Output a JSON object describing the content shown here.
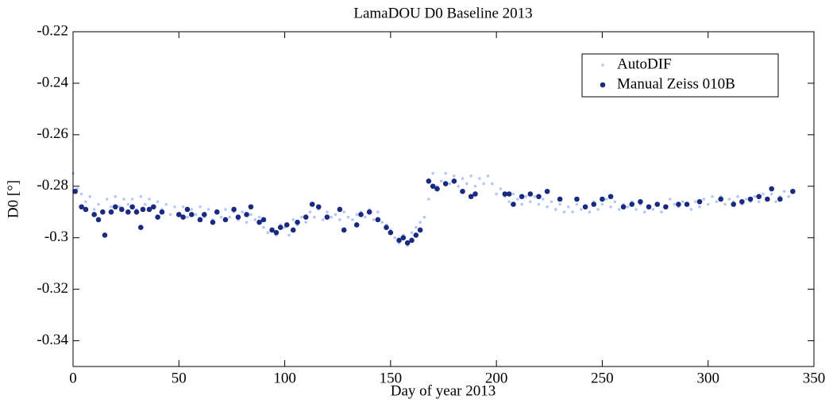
{
  "chart_data": {
    "type": "scatter",
    "title": "LamaDOU D0 Baseline 2013",
    "x_label": "Day of year 2013",
    "y_label": "D0 [°]",
    "xlim": [
      0,
      350
    ],
    "xticks": [
      0,
      50,
      100,
      150,
      200,
      250,
      300,
      350
    ],
    "ylim": [
      -0.35,
      -0.22
    ],
    "yticks": [
      -0.34,
      -0.32,
      -0.3,
      -0.28,
      -0.26,
      -0.24,
      -0.22
    ],
    "grid": false,
    "legend": "upper right",
    "series": [
      {
        "name": "AutoDIF",
        "color": "#b3c6f5",
        "marker": "dot",
        "x": [
          0,
          2,
          4,
          6,
          8,
          10,
          12,
          14,
          16,
          18,
          20,
          22,
          24,
          26,
          28,
          30,
          32,
          34,
          36,
          38,
          40,
          42,
          44,
          46,
          48,
          50,
          52,
          54,
          56,
          58,
          60,
          62,
          64,
          66,
          68,
          70,
          72,
          74,
          76,
          78,
          80,
          82,
          84,
          86,
          88,
          90,
          92,
          94,
          96,
          98,
          100,
          102,
          104,
          106,
          108,
          110,
          112,
          114,
          116,
          118,
          120,
          122,
          124,
          126,
          128,
          130,
          132,
          134,
          136,
          138,
          140,
          142,
          144,
          146,
          148,
          150,
          152,
          154,
          156,
          158,
          160,
          162,
          164,
          166,
          168,
          170,
          172,
          174,
          176,
          178,
          180,
          182,
          184,
          186,
          188,
          190,
          192,
          194,
          196,
          198,
          200,
          202,
          204,
          206,
          208,
          210,
          212,
          214,
          216,
          218,
          220,
          222,
          224,
          226,
          228,
          230,
          232,
          234,
          236,
          238,
          240,
          242,
          244,
          246,
          248,
          250,
          252,
          254,
          256,
          258,
          260,
          262,
          264,
          266,
          268,
          270,
          272,
          274,
          276,
          278,
          280,
          282,
          284,
          286,
          288,
          290,
          292,
          294,
          296,
          298,
          300,
          302,
          304,
          306,
          308,
          310,
          312,
          314,
          316,
          318,
          320,
          322,
          324,
          326,
          328,
          330,
          332,
          334,
          336,
          338
        ],
        "values": [
          -0.275,
          -0.281,
          -0.283,
          -0.286,
          -0.284,
          -0.289,
          -0.287,
          -0.29,
          -0.285,
          -0.288,
          -0.284,
          -0.288,
          -0.285,
          -0.287,
          -0.285,
          -0.289,
          -0.284,
          -0.287,
          -0.285,
          -0.288,
          -0.286,
          -0.289,
          -0.287,
          -0.291,
          -0.288,
          -0.291,
          -0.288,
          -0.292,
          -0.289,
          -0.291,
          -0.288,
          -0.292,
          -0.289,
          -0.293,
          -0.29,
          -0.292,
          -0.289,
          -0.292,
          -0.29,
          -0.293,
          -0.29,
          -0.294,
          -0.291,
          -0.293,
          -0.292,
          -0.296,
          -0.298,
          -0.297,
          -0.299,
          -0.295,
          -0.296,
          -0.299,
          -0.293,
          -0.295,
          -0.292,
          -0.294,
          -0.29,
          -0.292,
          -0.289,
          -0.293,
          -0.29,
          -0.292,
          -0.291,
          -0.293,
          -0.29,
          -0.292,
          -0.293,
          -0.291,
          -0.29,
          -0.292,
          -0.289,
          -0.293,
          -0.29,
          -0.294,
          -0.295,
          -0.297,
          -0.3,
          -0.302,
          -0.299,
          -0.303,
          -0.298,
          -0.296,
          -0.294,
          -0.292,
          -0.285,
          -0.275,
          -0.28,
          -0.278,
          -0.275,
          -0.279,
          -0.276,
          -0.28,
          -0.277,
          -0.279,
          -0.276,
          -0.28,
          -0.277,
          -0.279,
          -0.276,
          -0.279,
          -0.283,
          -0.281,
          -0.284,
          -0.286,
          -0.283,
          -0.285,
          -0.287,
          -0.284,
          -0.286,
          -0.284,
          -0.287,
          -0.285,
          -0.288,
          -0.286,
          -0.289,
          -0.287,
          -0.29,
          -0.288,
          -0.29,
          -0.287,
          -0.289,
          -0.288,
          -0.29,
          -0.286,
          -0.289,
          -0.287,
          -0.285,
          -0.288,
          -0.286,
          -0.289,
          -0.287,
          -0.288,
          -0.286,
          -0.289,
          -0.287,
          -0.29,
          -0.288,
          -0.289,
          -0.287,
          -0.29,
          -0.288,
          -0.285,
          -0.287,
          -0.288,
          -0.286,
          -0.287,
          -0.289,
          -0.286,
          -0.288,
          -0.285,
          -0.287,
          -0.284,
          -0.286,
          -0.284,
          -0.287,
          -0.285,
          -0.286,
          -0.284,
          -0.287,
          -0.285,
          -0.286,
          -0.284,
          -0.286,
          -0.283,
          -0.285,
          -0.283,
          -0.286,
          -0.284,
          -0.282,
          -0.284
        ]
      },
      {
        "name": "Manual Zeiss 010B",
        "color": "#1a2a80",
        "marker": "circle",
        "x": [
          1,
          4,
          6,
          10,
          12,
          14,
          15,
          18,
          20,
          23,
          26,
          28,
          30,
          32,
          33,
          36,
          38,
          40,
          42,
          50,
          52,
          54,
          56,
          60,
          62,
          66,
          68,
          72,
          76,
          78,
          82,
          84,
          88,
          90,
          94,
          96,
          98,
          101,
          104,
          106,
          110,
          113,
          116,
          120,
          126,
          128,
          134,
          136,
          140,
          144,
          148,
          150,
          154,
          156,
          158,
          160,
          162,
          164,
          168,
          170,
          172,
          176,
          180,
          184,
          188,
          190,
          204,
          206,
          208,
          212,
          216,
          220,
          224,
          230,
          238,
          242,
          246,
          250,
          254,
          260,
          264,
          268,
          272,
          276,
          280,
          286,
          290,
          296,
          306,
          312,
          316,
          320,
          324,
          328,
          330,
          334,
          340
        ],
        "values": [
          -0.282,
          -0.288,
          -0.289,
          -0.291,
          -0.293,
          -0.29,
          -0.299,
          -0.29,
          -0.288,
          -0.289,
          -0.29,
          -0.288,
          -0.29,
          -0.296,
          -0.289,
          -0.289,
          -0.288,
          -0.292,
          -0.29,
          -0.291,
          -0.292,
          -0.289,
          -0.291,
          -0.293,
          -0.291,
          -0.294,
          -0.29,
          -0.293,
          -0.289,
          -0.292,
          -0.291,
          -0.288,
          -0.294,
          -0.293,
          -0.297,
          -0.298,
          -0.296,
          -0.295,
          -0.297,
          -0.294,
          -0.292,
          -0.287,
          -0.288,
          -0.292,
          -0.289,
          -0.297,
          -0.295,
          -0.291,
          -0.29,
          -0.293,
          -0.296,
          -0.298,
          -0.301,
          -0.3,
          -0.302,
          -0.301,
          -0.299,
          -0.297,
          -0.278,
          -0.28,
          -0.281,
          -0.279,
          -0.278,
          -0.282,
          -0.284,
          -0.283,
          -0.283,
          -0.283,
          -0.287,
          -0.284,
          -0.283,
          -0.284,
          -0.282,
          -0.285,
          -0.285,
          -0.288,
          -0.287,
          -0.285,
          -0.284,
          -0.288,
          -0.287,
          -0.286,
          -0.288,
          -0.287,
          -0.288,
          -0.287,
          -0.287,
          -0.286,
          -0.285,
          -0.287,
          -0.286,
          -0.285,
          -0.284,
          -0.285,
          -0.281,
          -0.285,
          -0.282
        ]
      }
    ]
  }
}
